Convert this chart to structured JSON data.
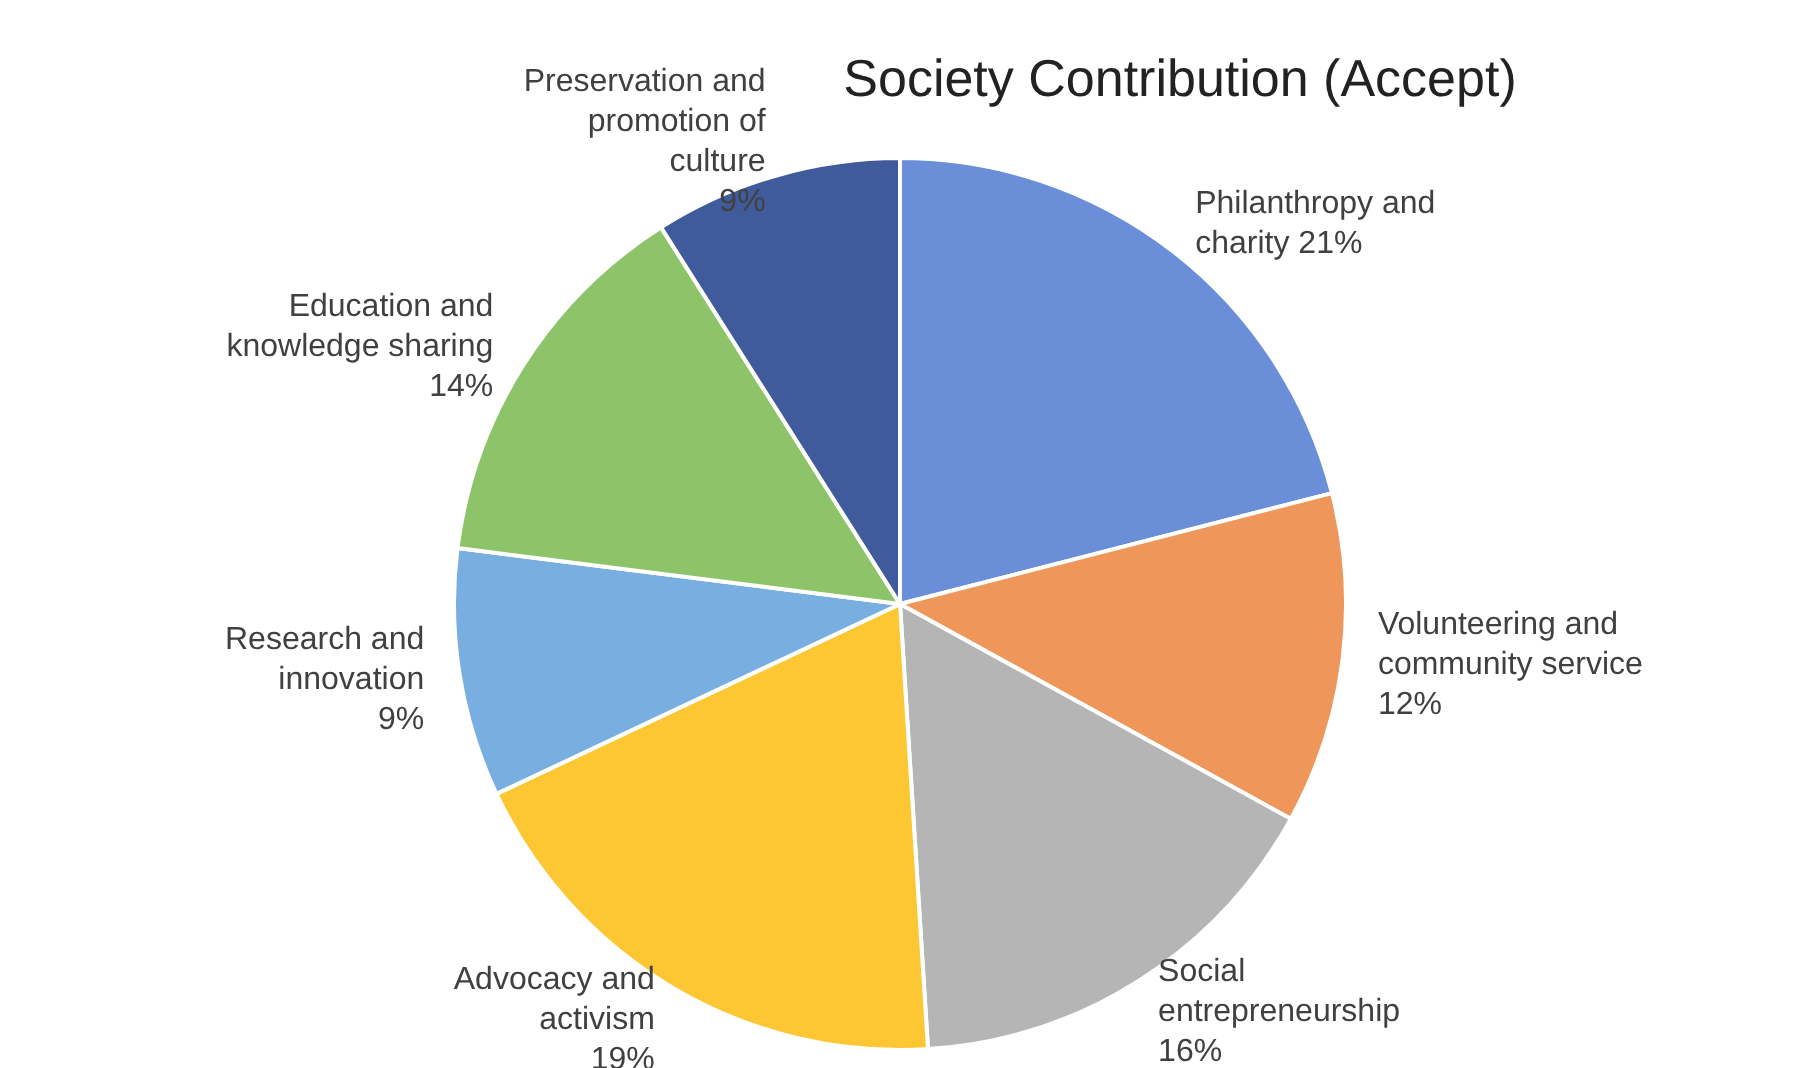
{
  "chart_data": {
    "type": "pie",
    "title": "Society Contribution (Accept)",
    "categories": [
      "Philanthropy and charity",
      "Volunteering and community service",
      "Social entrepreneurship",
      "Advocacy and activism",
      "Research and innovation",
      "Education and knowledge sharing",
      "Preservation and promotion of culture"
    ],
    "values": [
      21,
      12,
      16,
      19,
      9,
      14,
      9
    ],
    "value_labels": [
      "21%",
      "12%",
      "16%",
      "19%",
      "9%",
      "14%",
      "9%"
    ],
    "colors": [
      "#6a8fd8",
      "#ef965a",
      "#b5b5b5",
      "#fdc633",
      "#78aee0",
      "#8dc46a",
      "#3f5b9c"
    ]
  }
}
